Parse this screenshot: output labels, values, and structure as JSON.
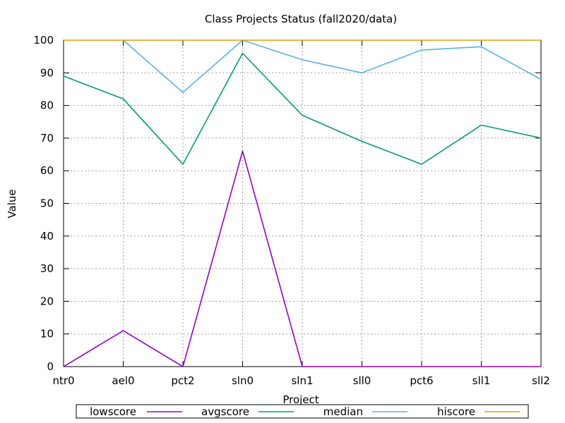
{
  "chart_data": {
    "type": "line",
    "title": "Class Projects Status (fall2020/data)",
    "xlabel": "Project",
    "ylabel": "Value",
    "ylim": [
      0,
      100
    ],
    "yticks": [
      0,
      10,
      20,
      30,
      40,
      50,
      60,
      70,
      80,
      90,
      100
    ],
    "grid": true,
    "legend_position": "bottom",
    "categories": [
      "ntr0",
      "ael0",
      "pct2",
      "sln0",
      "sln1",
      "sll0",
      "pct6",
      "sll1",
      "sll2"
    ],
    "series": [
      {
        "name": "lowscore",
        "color": "#9400d3",
        "values": [
          0,
          11,
          0,
          66,
          0,
          0,
          0,
          0,
          0
        ]
      },
      {
        "name": "avgscore",
        "color": "#009e73",
        "values": [
          89,
          82,
          62,
          96,
          77,
          69,
          62,
          74,
          70
        ]
      },
      {
        "name": "median",
        "color": "#56b4e9",
        "values": [
          null,
          100,
          84,
          100,
          94,
          90,
          97,
          98,
          88
        ]
      },
      {
        "name": "hiscore",
        "color": "#e69f00",
        "values": [
          100,
          100,
          100,
          100,
          100,
          100,
          100,
          100,
          100
        ]
      }
    ]
  }
}
